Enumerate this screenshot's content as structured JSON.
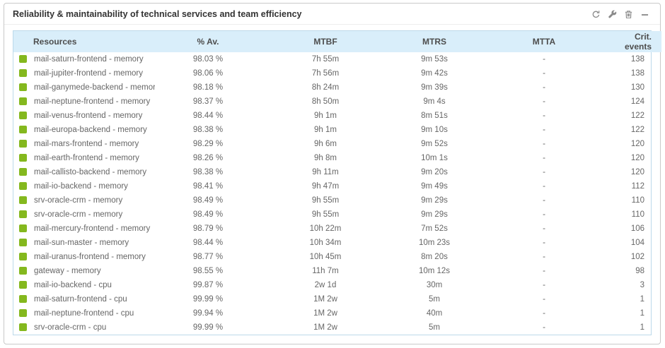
{
  "widget": {
    "title": "Reliability & maintainability of technical services and team efficiency",
    "toolbar": [
      {
        "name": "refresh-icon"
      },
      {
        "name": "wrench-icon"
      },
      {
        "name": "delete-icon"
      },
      {
        "name": "minimize-icon"
      }
    ]
  },
  "colors": {
    "status_up": "#84b81e",
    "header_bg": "#d9eefa",
    "card_border": "#c9c9c9",
    "table_border": "#bcd9ea",
    "row_text": "#666666",
    "header_text": "#4d4d4d",
    "title_text": "#333333",
    "icon": "#8a8a8a"
  },
  "table": {
    "columns": [
      "Resources",
      "% Av.",
      "MTBF",
      "MTRS",
      "MTTA",
      "Crit. events"
    ],
    "rows": [
      {
        "status": "up",
        "resource": "mail-saturn-frontend - memory",
        "availability": "98.03 %",
        "mtbf": "7h 55m",
        "mtrs": "9m 53s",
        "mtta": "-",
        "crit_events": "138"
      },
      {
        "status": "up",
        "resource": "mail-jupiter-frontend - memory",
        "availability": "98.06 %",
        "mtbf": "7h 56m",
        "mtrs": "9m 42s",
        "mtta": "-",
        "crit_events": "138"
      },
      {
        "status": "up",
        "resource": "mail-ganymede-backend - memory",
        "availability": "98.18 %",
        "mtbf": "8h 24m",
        "mtrs": "9m 39s",
        "mtta": "-",
        "crit_events": "130"
      },
      {
        "status": "up",
        "resource": "mail-neptune-frontend - memory",
        "availability": "98.37 %",
        "mtbf": "8h 50m",
        "mtrs": "9m 4s",
        "mtta": "-",
        "crit_events": "124"
      },
      {
        "status": "up",
        "resource": "mail-venus-frontend - memory",
        "availability": "98.44 %",
        "mtbf": "9h 1m",
        "mtrs": "8m 51s",
        "mtta": "-",
        "crit_events": "122"
      },
      {
        "status": "up",
        "resource": "mail-europa-backend - memory",
        "availability": "98.38 %",
        "mtbf": "9h 1m",
        "mtrs": "9m 10s",
        "mtta": "-",
        "crit_events": "122"
      },
      {
        "status": "up",
        "resource": "mail-mars-frontend - memory",
        "availability": "98.29 %",
        "mtbf": "9h 6m",
        "mtrs": "9m 52s",
        "mtta": "-",
        "crit_events": "120"
      },
      {
        "status": "up",
        "resource": "mail-earth-frontend - memory",
        "availability": "98.26 %",
        "mtbf": "9h 8m",
        "mtrs": "10m 1s",
        "mtta": "-",
        "crit_events": "120"
      },
      {
        "status": "up",
        "resource": "mail-callisto-backend - memory",
        "availability": "98.38 %",
        "mtbf": "9h 11m",
        "mtrs": "9m 20s",
        "mtta": "-",
        "crit_events": "120"
      },
      {
        "status": "up",
        "resource": "mail-io-backend - memory",
        "availability": "98.41 %",
        "mtbf": "9h 47m",
        "mtrs": "9m 49s",
        "mtta": "-",
        "crit_events": "112"
      },
      {
        "status": "up",
        "resource": "srv-oracle-crm - memory",
        "availability": "98.49 %",
        "mtbf": "9h 55m",
        "mtrs": "9m 29s",
        "mtta": "-",
        "crit_events": "110"
      },
      {
        "status": "up",
        "resource": "srv-oracle-crm - memory",
        "availability": "98.49 %",
        "mtbf": "9h 55m",
        "mtrs": "9m 29s",
        "mtta": "-",
        "crit_events": "110"
      },
      {
        "status": "up",
        "resource": "mail-mercury-frontend - memory",
        "availability": "98.79 %",
        "mtbf": "10h 22m",
        "mtrs": "7m 52s",
        "mtta": "-",
        "crit_events": "106"
      },
      {
        "status": "up",
        "resource": "mail-sun-master - memory",
        "availability": "98.44 %",
        "mtbf": "10h 34m",
        "mtrs": "10m 23s",
        "mtta": "-",
        "crit_events": "104"
      },
      {
        "status": "up",
        "resource": "mail-uranus-frontend - memory",
        "availability": "98.77 %",
        "mtbf": "10h 45m",
        "mtrs": "8m 20s",
        "mtta": "-",
        "crit_events": "102"
      },
      {
        "status": "up",
        "resource": "gateway - memory",
        "availability": "98.55 %",
        "mtbf": "11h 7m",
        "mtrs": "10m 12s",
        "mtta": "-",
        "crit_events": "98"
      },
      {
        "status": "up",
        "resource": "mail-io-backend - cpu",
        "availability": "99.87 %",
        "mtbf": "2w 1d",
        "mtrs": "30m",
        "mtta": "-",
        "crit_events": "3"
      },
      {
        "status": "up",
        "resource": "mail-saturn-frontend - cpu",
        "availability": "99.99 %",
        "mtbf": "1M 2w",
        "mtrs": "5m",
        "mtta": "-",
        "crit_events": "1"
      },
      {
        "status": "up",
        "resource": "mail-neptune-frontend - cpu",
        "availability": "99.94 %",
        "mtbf": "1M 2w",
        "mtrs": "40m",
        "mtta": "-",
        "crit_events": "1"
      },
      {
        "status": "up",
        "resource": "srv-oracle-crm - cpu",
        "availability": "99.99 %",
        "mtbf": "1M 2w",
        "mtrs": "5m",
        "mtta": "-",
        "crit_events": "1"
      }
    ]
  }
}
